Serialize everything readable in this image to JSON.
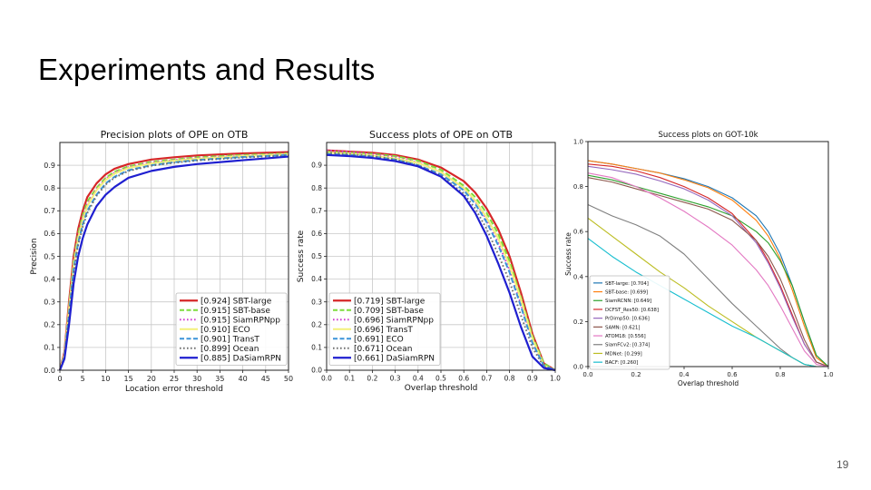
{
  "slide": {
    "title": "Experiments and Results",
    "page_number": "19"
  },
  "chart_data": [
    {
      "type": "line",
      "title": "Precision plots of OPE on OTB",
      "xlabel": "Location error threshold",
      "ylabel": "Precision",
      "xlim": [
        0,
        50
      ],
      "ylim": [
        0,
        1
      ],
      "xticks": [
        0,
        5,
        10,
        15,
        20,
        25,
        30,
        35,
        40,
        45,
        50
      ],
      "yticks": [
        0.0,
        0.1,
        0.2,
        0.3,
        0.4,
        0.5,
        0.6,
        0.7,
        0.8,
        0.9
      ],
      "grid": true,
      "legend_position": "bottom-right",
      "series": [
        {
          "name": "[0.924] SBT-large",
          "color": "#d62728",
          "dash": "solid",
          "width": 2.2,
          "x": [
            0,
            1,
            2,
            3,
            4,
            5,
            6,
            8,
            10,
            12,
            15,
            20,
            25,
            30,
            40,
            50
          ],
          "y": [
            0,
            0.08,
            0.3,
            0.5,
            0.62,
            0.7,
            0.76,
            0.82,
            0.86,
            0.885,
            0.905,
            0.925,
            0.935,
            0.943,
            0.952,
            0.958
          ]
        },
        {
          "name": "[0.915] SBT-base",
          "color": "#7ddc3c",
          "dash": "dashed",
          "width": 2,
          "x": [
            0,
            1,
            2,
            3,
            4,
            5,
            6,
            8,
            10,
            12,
            15,
            20,
            25,
            30,
            40,
            50
          ],
          "y": [
            0,
            0.07,
            0.28,
            0.48,
            0.6,
            0.68,
            0.74,
            0.8,
            0.845,
            0.872,
            0.895,
            0.915,
            0.925,
            0.935,
            0.945,
            0.952
          ]
        },
        {
          "name": "[0.915] SiamRPNpp",
          "color": "#d23fd2",
          "dash": "dotted",
          "width": 2,
          "x": [
            0,
            1,
            2,
            3,
            4,
            5,
            6,
            8,
            10,
            12,
            15,
            20,
            25,
            30,
            40,
            50
          ],
          "y": [
            0,
            0.07,
            0.27,
            0.47,
            0.59,
            0.67,
            0.73,
            0.795,
            0.84,
            0.868,
            0.892,
            0.912,
            0.923,
            0.932,
            0.942,
            0.95
          ]
        },
        {
          "name": "[0.910] ECO",
          "color": "#f3f07a",
          "dash": "solid",
          "width": 2,
          "x": [
            0,
            1,
            2,
            3,
            4,
            5,
            6,
            8,
            10,
            12,
            15,
            20,
            25,
            30,
            40,
            50
          ],
          "y": [
            0,
            0.07,
            0.27,
            0.46,
            0.58,
            0.66,
            0.72,
            0.79,
            0.835,
            0.863,
            0.888,
            0.908,
            0.92,
            0.929,
            0.94,
            0.948
          ]
        },
        {
          "name": "[0.901] TransT",
          "color": "#3b94d9",
          "dash": "dashed",
          "width": 2,
          "x": [
            0,
            1,
            2,
            3,
            4,
            5,
            6,
            8,
            10,
            12,
            15,
            20,
            25,
            30,
            40,
            50
          ],
          "y": [
            0,
            0.06,
            0.25,
            0.44,
            0.56,
            0.64,
            0.7,
            0.77,
            0.82,
            0.85,
            0.878,
            0.9,
            0.913,
            0.923,
            0.936,
            0.945
          ]
        },
        {
          "name": "[0.899] Ocean",
          "color": "#707070",
          "dash": "dotted",
          "width": 2,
          "x": [
            0,
            1,
            2,
            3,
            4,
            5,
            6,
            8,
            10,
            12,
            15,
            20,
            25,
            30,
            40,
            50
          ],
          "y": [
            0,
            0.06,
            0.24,
            0.43,
            0.55,
            0.63,
            0.69,
            0.765,
            0.815,
            0.846,
            0.875,
            0.898,
            0.911,
            0.921,
            0.934,
            0.943
          ]
        },
        {
          "name": "[0.885] DaSiamRPN",
          "color": "#1f1fd0",
          "dash": "solid",
          "width": 2.2,
          "x": [
            0,
            1,
            2,
            3,
            4,
            5,
            6,
            8,
            10,
            12,
            15,
            20,
            25,
            30,
            40,
            50
          ],
          "y": [
            0,
            0.05,
            0.2,
            0.38,
            0.5,
            0.58,
            0.64,
            0.72,
            0.77,
            0.805,
            0.845,
            0.875,
            0.893,
            0.905,
            0.922,
            0.938
          ]
        }
      ]
    },
    {
      "type": "line",
      "title": "Success plots of OPE on OTB",
      "xlabel": "Overlap threshold",
      "ylabel": "Success rate",
      "xlim": [
        0,
        1
      ],
      "ylim": [
        0,
        1
      ],
      "xticks": [
        0.0,
        0.1,
        0.2,
        0.3,
        0.4,
        0.5,
        0.6,
        0.7,
        0.8,
        0.9,
        1.0
      ],
      "yticks": [
        0.0,
        0.1,
        0.2,
        0.3,
        0.4,
        0.5,
        0.6,
        0.7,
        0.8,
        0.9
      ],
      "grid": true,
      "legend_position": "bottom-left",
      "series": [
        {
          "name": "[0.719] SBT-large",
          "color": "#d62728",
          "dash": "solid",
          "width": 2.2,
          "x": [
            0,
            0.1,
            0.2,
            0.3,
            0.4,
            0.5,
            0.6,
            0.65,
            0.7,
            0.75,
            0.8,
            0.85,
            0.9,
            0.95,
            1.0
          ],
          "y": [
            0.965,
            0.96,
            0.955,
            0.945,
            0.925,
            0.89,
            0.83,
            0.78,
            0.71,
            0.62,
            0.5,
            0.34,
            0.16,
            0.03,
            0
          ]
        },
        {
          "name": "[0.709] SBT-base",
          "color": "#7ddc3c",
          "dash": "dashed",
          "width": 2,
          "x": [
            0,
            0.1,
            0.2,
            0.3,
            0.4,
            0.5,
            0.6,
            0.65,
            0.7,
            0.75,
            0.8,
            0.85,
            0.9,
            0.95,
            1.0
          ],
          "y": [
            0.96,
            0.955,
            0.95,
            0.94,
            0.92,
            0.88,
            0.81,
            0.76,
            0.69,
            0.6,
            0.48,
            0.32,
            0.15,
            0.03,
            0
          ]
        },
        {
          "name": "[0.696] SiamRPNpp",
          "color": "#d23fd2",
          "dash": "dotted",
          "width": 2,
          "x": [
            0,
            0.1,
            0.2,
            0.3,
            0.4,
            0.5,
            0.6,
            0.65,
            0.7,
            0.75,
            0.8,
            0.85,
            0.9,
            0.95,
            1.0
          ],
          "y": [
            0.965,
            0.958,
            0.948,
            0.935,
            0.912,
            0.87,
            0.8,
            0.74,
            0.66,
            0.56,
            0.44,
            0.29,
            0.13,
            0.02,
            0
          ]
        },
        {
          "name": "[0.696] TransT",
          "color": "#f3f07a",
          "dash": "solid",
          "width": 2,
          "x": [
            0,
            0.1,
            0.2,
            0.3,
            0.4,
            0.5,
            0.6,
            0.65,
            0.7,
            0.75,
            0.8,
            0.85,
            0.9,
            0.95,
            1.0
          ],
          "y": [
            0.955,
            0.95,
            0.943,
            0.93,
            0.91,
            0.87,
            0.8,
            0.745,
            0.67,
            0.58,
            0.46,
            0.31,
            0.14,
            0.02,
            0
          ]
        },
        {
          "name": "[0.691] ECO",
          "color": "#3b94d9",
          "dash": "dashed",
          "width": 2,
          "x": [
            0,
            0.1,
            0.2,
            0.3,
            0.4,
            0.5,
            0.6,
            0.65,
            0.7,
            0.75,
            0.8,
            0.85,
            0.9,
            0.95,
            1.0
          ],
          "y": [
            0.95,
            0.945,
            0.938,
            0.925,
            0.9,
            0.86,
            0.79,
            0.73,
            0.65,
            0.55,
            0.43,
            0.28,
            0.12,
            0.02,
            0
          ]
        },
        {
          "name": "[0.671] Ocean",
          "color": "#707070",
          "dash": "dotted",
          "width": 2,
          "x": [
            0,
            0.1,
            0.2,
            0.3,
            0.4,
            0.5,
            0.6,
            0.65,
            0.7,
            0.75,
            0.8,
            0.85,
            0.9,
            0.95,
            1.0
          ],
          "y": [
            0.955,
            0.948,
            0.94,
            0.925,
            0.9,
            0.855,
            0.775,
            0.71,
            0.62,
            0.51,
            0.39,
            0.24,
            0.1,
            0.015,
            0
          ]
        },
        {
          "name": "[0.661] DaSiamRPN",
          "color": "#1f1fd0",
          "dash": "solid",
          "width": 2.2,
          "x": [
            0,
            0.1,
            0.2,
            0.3,
            0.4,
            0.5,
            0.6,
            0.65,
            0.7,
            0.75,
            0.8,
            0.85,
            0.9,
            0.95,
            1.0
          ],
          "y": [
            0.945,
            0.94,
            0.932,
            0.918,
            0.895,
            0.85,
            0.765,
            0.69,
            0.59,
            0.47,
            0.34,
            0.19,
            0.06,
            0.01,
            0
          ]
        }
      ]
    },
    {
      "type": "line",
      "title": "Success plots on GOT-10k",
      "xlabel": "Overlap threshold",
      "ylabel": "Success rate",
      "xlim": [
        0,
        1
      ],
      "ylim": [
        0,
        1
      ],
      "xticks": [
        0.0,
        0.2,
        0.4,
        0.6,
        0.8,
        1.0
      ],
      "yticks": [
        0.0,
        0.2,
        0.4,
        0.6,
        0.8,
        1.0
      ],
      "grid": false,
      "legend_position": "bottom-left",
      "series": [
        {
          "name": "SBT-large: [0.704]",
          "color": "#1f77b4",
          "x": [
            0,
            0.1,
            0.2,
            0.3,
            0.4,
            0.5,
            0.6,
            0.7,
            0.75,
            0.8,
            0.85,
            0.9,
            0.95,
            1.0
          ],
          "y": [
            0.915,
            0.9,
            0.88,
            0.86,
            0.835,
            0.8,
            0.75,
            0.67,
            0.6,
            0.5,
            0.36,
            0.2,
            0.05,
            0
          ]
        },
        {
          "name": "SBT-base: [0.699]",
          "color": "#ff7f0e",
          "x": [
            0,
            0.1,
            0.2,
            0.3,
            0.4,
            0.5,
            0.6,
            0.7,
            0.75,
            0.8,
            0.85,
            0.9,
            0.95,
            1.0
          ],
          "y": [
            0.915,
            0.9,
            0.88,
            0.86,
            0.83,
            0.795,
            0.74,
            0.65,
            0.58,
            0.48,
            0.34,
            0.18,
            0.04,
            0
          ]
        },
        {
          "name": "SiamRCNN: [0.649]",
          "color": "#2ca02c",
          "x": [
            0,
            0.1,
            0.2,
            0.3,
            0.4,
            0.5,
            0.6,
            0.7,
            0.75,
            0.8,
            0.85,
            0.9,
            0.95,
            1.0
          ],
          "y": [
            0.85,
            0.83,
            0.8,
            0.77,
            0.74,
            0.71,
            0.67,
            0.6,
            0.55,
            0.47,
            0.36,
            0.2,
            0.05,
            0
          ]
        },
        {
          "name": "DCFST_Res50: [0.638]",
          "color": "#d62728",
          "x": [
            0,
            0.1,
            0.2,
            0.3,
            0.4,
            0.5,
            0.6,
            0.7,
            0.75,
            0.8,
            0.85,
            0.9,
            0.95,
            1.0
          ],
          "y": [
            0.9,
            0.89,
            0.87,
            0.84,
            0.8,
            0.75,
            0.68,
            0.56,
            0.47,
            0.36,
            0.23,
            0.1,
            0.02,
            0
          ]
        },
        {
          "name": "PrDimp50: [0.636]",
          "color": "#9467bd",
          "x": [
            0,
            0.1,
            0.2,
            0.3,
            0.4,
            0.5,
            0.6,
            0.7,
            0.75,
            0.8,
            0.85,
            0.9,
            0.95,
            1.0
          ],
          "y": [
            0.89,
            0.875,
            0.855,
            0.825,
            0.79,
            0.74,
            0.67,
            0.55,
            0.46,
            0.35,
            0.22,
            0.1,
            0.02,
            0
          ]
        },
        {
          "name": "SAMN: [0.621]",
          "color": "#8c564b",
          "x": [
            0,
            0.1,
            0.2,
            0.3,
            0.4,
            0.5,
            0.6,
            0.7,
            0.75,
            0.8,
            0.85,
            0.9,
            0.95,
            1.0
          ],
          "y": [
            0.84,
            0.82,
            0.79,
            0.76,
            0.73,
            0.7,
            0.65,
            0.56,
            0.49,
            0.39,
            0.26,
            0.12,
            0.02,
            0
          ]
        },
        {
          "name": "ATOM18: [0.556]",
          "color": "#e377c2",
          "x": [
            0,
            0.1,
            0.2,
            0.3,
            0.4,
            0.5,
            0.6,
            0.7,
            0.75,
            0.8,
            0.85,
            0.9,
            0.95,
            1.0
          ],
          "y": [
            0.86,
            0.84,
            0.8,
            0.75,
            0.69,
            0.62,
            0.54,
            0.43,
            0.36,
            0.27,
            0.17,
            0.07,
            0.01,
            0
          ]
        },
        {
          "name": "SiamFCv2: [0.374]",
          "color": "#7f7f7f",
          "x": [
            0,
            0.1,
            0.2,
            0.3,
            0.4,
            0.5,
            0.6,
            0.7,
            0.75,
            0.8,
            0.85,
            0.9,
            0.95,
            1.0
          ],
          "y": [
            0.72,
            0.67,
            0.63,
            0.58,
            0.5,
            0.39,
            0.28,
            0.18,
            0.13,
            0.08,
            0.04,
            0.01,
            0,
            0
          ]
        },
        {
          "name": "MDNet: [0.299]",
          "color": "#bcbd22",
          "x": [
            0,
            0.1,
            0.2,
            0.3,
            0.4,
            0.5,
            0.6,
            0.7,
            0.75,
            0.8,
            0.85,
            0.9,
            0.95,
            1.0
          ],
          "y": [
            0.66,
            0.58,
            0.5,
            0.42,
            0.35,
            0.27,
            0.2,
            0.13,
            0.1,
            0.07,
            0.04,
            0.01,
            0,
            0
          ]
        },
        {
          "name": "BACF: [0.260]",
          "color": "#17becf",
          "x": [
            0,
            0.1,
            0.2,
            0.3,
            0.4,
            0.5,
            0.6,
            0.7,
            0.75,
            0.8,
            0.85,
            0.9,
            0.95,
            1.0
          ],
          "y": [
            0.57,
            0.49,
            0.42,
            0.36,
            0.3,
            0.24,
            0.18,
            0.13,
            0.1,
            0.07,
            0.04,
            0.01,
            0,
            0
          ]
        }
      ]
    }
  ]
}
